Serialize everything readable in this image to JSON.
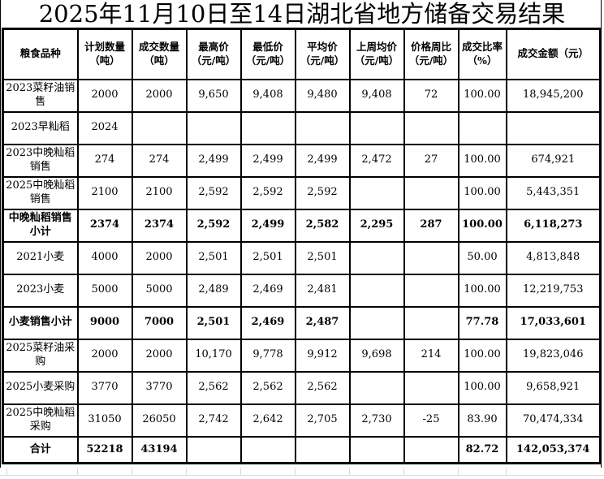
{
  "title": "2025年11月10日至14日湖北省地方储备交易结果",
  "table": {
    "headers": [
      {
        "lines": [
          "粮食品种"
        ]
      },
      {
        "lines": [
          "计划数量",
          "（吨）"
        ]
      },
      {
        "lines": [
          "成交数量",
          "（吨）"
        ]
      },
      {
        "lines": [
          "最高价",
          "（元/吨）"
        ]
      },
      {
        "lines": [
          "最低价",
          "（元/吨）"
        ]
      },
      {
        "lines": [
          "平均价",
          "（元/吨）"
        ]
      },
      {
        "lines": [
          "上周均价",
          "（元/吨）"
        ]
      },
      {
        "lines": [
          "价格周比",
          "（元/吨）"
        ]
      },
      {
        "lines": [
          "成交比率",
          "（%）"
        ]
      },
      {
        "lines": [
          "成交金额（元）"
        ]
      }
    ],
    "rows": [
      {
        "bold": false,
        "cells": [
          "2023菜籽油销售",
          "2000",
          "2000",
          "9,650",
          "9,408",
          "9,480",
          "9,408",
          "72",
          "100.00",
          "18,945,200"
        ]
      },
      {
        "bold": false,
        "cells": [
          "2023早籼稻",
          "2024",
          "",
          "",
          "",
          "",
          "",
          "",
          "",
          ""
        ]
      },
      {
        "bold": false,
        "cells": [
          "2023中晚籼稻销售",
          "274",
          "274",
          "2,499",
          "2,499",
          "2,499",
          "2,472",
          "27",
          "100.00",
          "674,921"
        ]
      },
      {
        "bold": false,
        "cells": [
          "2025中晚籼稻销售",
          "2100",
          "2100",
          "2,592",
          "2,592",
          "2,592",
          "",
          "",
          "100.00",
          "5,443,351"
        ]
      },
      {
        "bold": true,
        "cells": [
          "中晚籼稻销售小计",
          "2374",
          "2374",
          "2,592",
          "2,499",
          "2,582",
          "2,295",
          "287",
          "100.00",
          "6,118,273"
        ]
      },
      {
        "bold": false,
        "cells": [
          "2021小麦",
          "4000",
          "2000",
          "2,501",
          "2,501",
          "2,501",
          "",
          "",
          "50.00",
          "4,813,848"
        ]
      },
      {
        "bold": false,
        "cells": [
          "2023小麦",
          "5000",
          "5000",
          "2,489",
          "2,469",
          "2,481",
          "",
          "",
          "100.00",
          "12,219,753"
        ]
      },
      {
        "bold": true,
        "cells": [
          "小麦销售小计",
          "9000",
          "7000",
          "2,501",
          "2,469",
          "2,487",
          "",
          "",
          "77.78",
          "17,033,601"
        ]
      },
      {
        "bold": false,
        "cells": [
          "2025菜籽油采购",
          "2000",
          "2000",
          "10,170",
          "9,778",
          "9,912",
          "9,698",
          "214",
          "100.00",
          "19,823,046"
        ]
      },
      {
        "bold": false,
        "cells": [
          "2025小麦采购",
          "3770",
          "3770",
          "2,562",
          "2,562",
          "2,562",
          "",
          "",
          "100.00",
          "9,658,921"
        ]
      },
      {
        "bold": false,
        "cells": [
          "2025中晚籼稻采购",
          "31050",
          "26050",
          "2,742",
          "2,642",
          "2,705",
          "2,730",
          "-25",
          "83.90",
          "70,474,334"
        ]
      },
      {
        "bold": true,
        "cells": [
          "合计",
          "52218",
          "43194",
          "",
          "",
          "",
          "",
          "",
          "82.72",
          "142,053,374"
        ]
      }
    ]
  },
  "colors": {
    "text": "#000000",
    "border": "#000000",
    "background": "#ffffff",
    "faint_grid": "#d9d9d9"
  }
}
